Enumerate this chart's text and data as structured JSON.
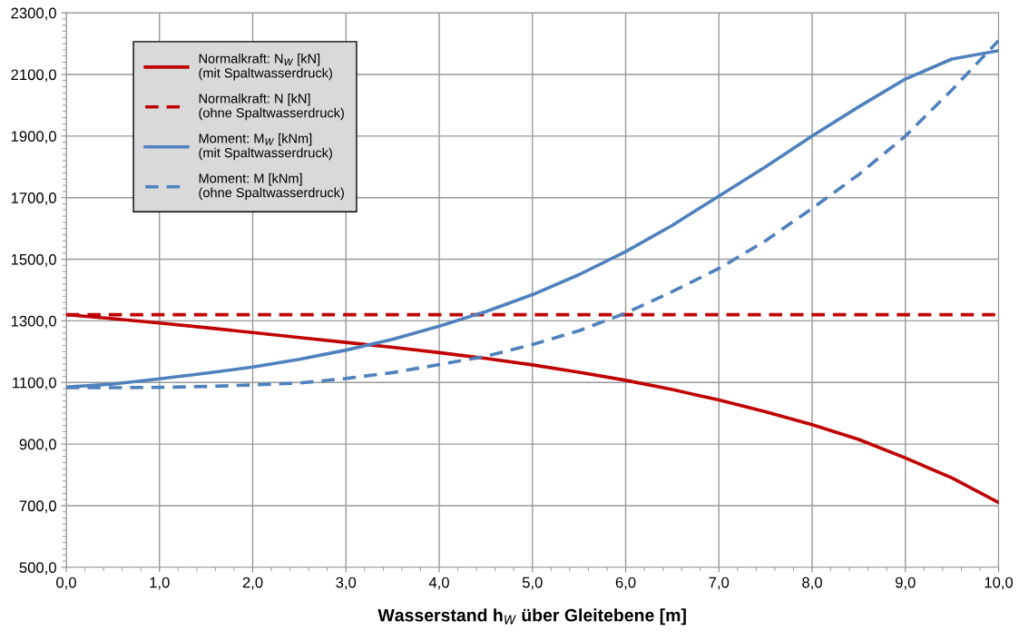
{
  "chart_data": {
    "type": "line",
    "xlabel": "Wasserstand h$_{W}$ über Gleitebene [m]",
    "x": [
      0,
      0.5,
      1,
      1.5,
      2,
      2.5,
      3,
      3.5,
      4,
      4.5,
      5,
      5.5,
      6,
      6.5,
      7,
      7.5,
      8,
      8.5,
      9,
      9.5,
      10
    ],
    "series": [
      {
        "name": "Normalkraft: N$_{W}$ [kN]\n(mit Spaltwasserdruck)",
        "color": "#c00000",
        "line_style": "solid",
        "values": [
          1320,
          1307,
          1293,
          1278,
          1262,
          1246,
          1230,
          1214,
          1197,
          1178,
          1157,
          1133,
          1107,
          1077,
          1043,
          1005,
          963,
          915,
          855,
          790,
          710
        ]
      },
      {
        "name": "Normalkraft: N [kN]\n(ohne Spaltwasserdruck)",
        "color": "#c00000",
        "line_style": "dashed",
        "values": [
          1320,
          1320,
          1320,
          1320,
          1320,
          1320,
          1320,
          1320,
          1320,
          1320,
          1320,
          1320,
          1320,
          1320,
          1320,
          1320,
          1320,
          1320,
          1320,
          1320,
          1320
        ]
      },
      {
        "name": "Moment: M$_{W}$ [kNm]\n(mit Spaltwasserdruck)",
        "color": "#4f81bd",
        "line_style": "solid",
        "values": [
          1085,
          1095,
          1112,
          1130,
          1150,
          1175,
          1205,
          1240,
          1283,
          1330,
          1385,
          1450,
          1525,
          1610,
          1705,
          1800,
          1900,
          1995,
          2085,
          2150,
          2177
        ]
      },
      {
        "name": "Moment: M [kNm]\n(ohne Spaltwasserdruck)",
        "color": "#4f81bd",
        "line_style": "dashed",
        "values": [
          1083,
          1083,
          1084,
          1087,
          1092,
          1098,
          1113,
          1132,
          1158,
          1185,
          1223,
          1268,
          1325,
          1395,
          1470,
          1560,
          1665,
          1775,
          1900,
          2050,
          2210
        ]
      }
    ],
    "xlim": [
      0,
      10
    ],
    "ylim": [
      500,
      2300
    ],
    "xticks": [
      {
        "value": 0,
        "label": "0,0"
      },
      {
        "value": 1,
        "label": "1,0"
      },
      {
        "value": 2,
        "label": "2,0"
      },
      {
        "value": 3,
        "label": "3,0"
      },
      {
        "value": 4,
        "label": "4,0"
      },
      {
        "value": 5,
        "label": "5,0"
      },
      {
        "value": 6,
        "label": "6,0"
      },
      {
        "value": 7,
        "label": "7,0"
      },
      {
        "value": 8,
        "label": "8,0"
      },
      {
        "value": 9,
        "label": "9,0"
      },
      {
        "value": 10,
        "label": "10,0"
      }
    ],
    "yticks": [
      {
        "value": 500,
        "label": "500,0"
      },
      {
        "value": 700,
        "label": "700,0"
      },
      {
        "value": 900,
        "label": "900,0"
      },
      {
        "value": 1100,
        "label": "1100,0"
      },
      {
        "value": 1300,
        "label": "1300,0"
      },
      {
        "value": 1500,
        "label": "1500,0"
      },
      {
        "value": 1700,
        "label": "1700,0"
      },
      {
        "value": 1900,
        "label": "1900,0"
      },
      {
        "value": 2100,
        "label": "2100,0"
      },
      {
        "value": 2300,
        "label": "2300,0"
      }
    ],
    "grid": true,
    "legend": "top left",
    "marker": "none"
  }
}
